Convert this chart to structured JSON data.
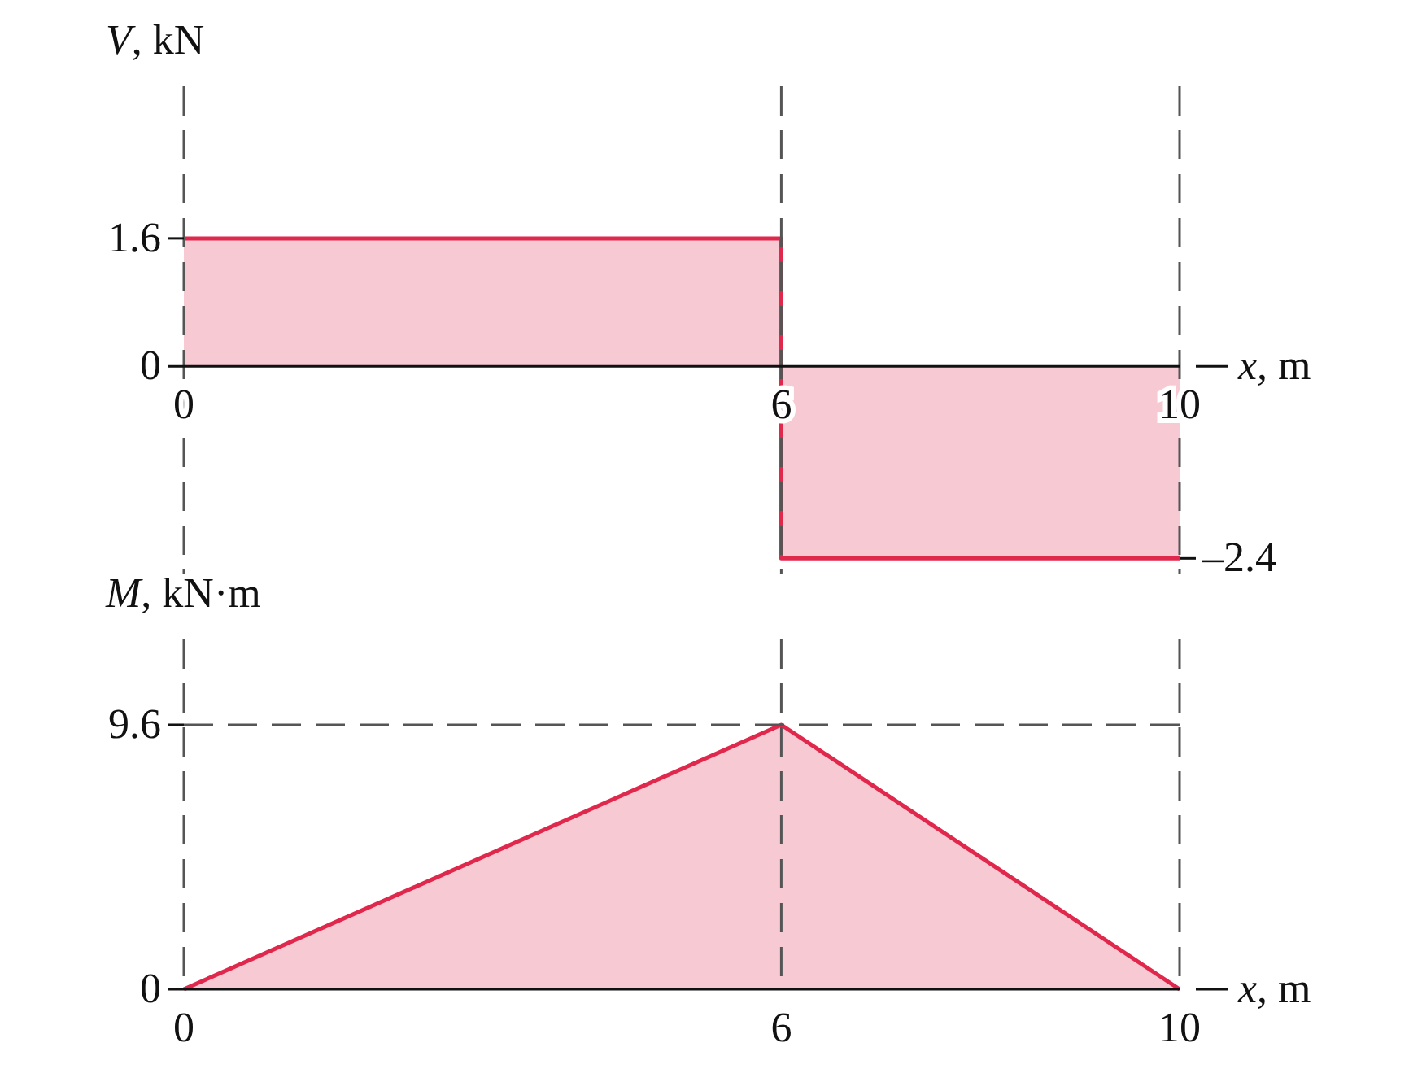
{
  "chart_data": [
    {
      "type": "area",
      "ylabel": "V, kN",
      "xlabel": "x, m",
      "xlim": [
        0,
        10
      ],
      "xticks": [
        0,
        6,
        10
      ],
      "ylim": [
        -2.6,
        3.5
      ],
      "yticks": [
        0,
        1.6
      ],
      "series": [
        {
          "color": "#e0284c",
          "x": [
            0,
            6,
            6,
            10
          ],
          "values": [
            1.6,
            1.6,
            -2.4,
            -2.4
          ]
        }
      ],
      "ref_lines": [
        {
          "axis": "x",
          "value": 6,
          "line_style": "dashed",
          "color": "#555555"
        }
      ],
      "annotations": [
        {
          "text": "–2.4",
          "x": 10,
          "y": -2.4
        }
      ]
    },
    {
      "type": "area",
      "ylabel": "M, kN·m",
      "xlabel": "x, m",
      "xlim": [
        0,
        10
      ],
      "xticks": [
        0,
        6,
        10
      ],
      "ylim": [
        0,
        12.7
      ],
      "yticks": [
        0,
        9.6
      ],
      "series": [
        {
          "color": "#e0284c",
          "x": [
            0,
            6,
            10
          ],
          "values": [
            0,
            9.6,
            0
          ]
        }
      ],
      "ref_lines": [
        {
          "axis": "x",
          "value": 6,
          "line_style": "dashed",
          "color": "#555555"
        },
        {
          "axis": "y",
          "value": 9.6,
          "line_style": "dashed",
          "color": "#555555"
        }
      ]
    }
  ]
}
